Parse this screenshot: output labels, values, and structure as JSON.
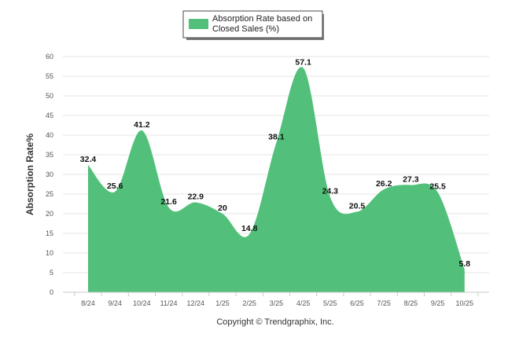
{
  "chart_data": {
    "type": "area",
    "legend": [
      "Absorption Rate based on",
      "Closed Sales (%)"
    ],
    "legend_position": "top-center",
    "ylabel": "Absorption Rate%",
    "xlabel": "",
    "categories": [
      "8/24",
      "9/24",
      "10/24",
      "11/24",
      "12/24",
      "1/25",
      "2/25",
      "3/25",
      "4/25",
      "5/25",
      "6/25",
      "7/25",
      "8/25",
      "9/25",
      "10/25"
    ],
    "values": [
      32.4,
      25.6,
      41.2,
      21.6,
      22.9,
      20,
      14.8,
      38.1,
      57.1,
      24.3,
      20.5,
      26.2,
      27.3,
      25.5,
      5.8
    ],
    "value_labels": [
      "32.4",
      "25.6",
      "41.2",
      "21.6",
      "22.9",
      "20",
      "14.8",
      "38.1",
      "57.1",
      "24.3",
      "20.5",
      "26.2",
      "27.3",
      "25.5",
      "5.8"
    ],
    "ylim": [
      0,
      60
    ],
    "yticks": [
      0,
      5,
      10,
      15,
      20,
      25,
      30,
      35,
      40,
      45,
      50,
      55,
      60
    ],
    "grid": true,
    "fill_color": "#52c07a",
    "footer": "Copyright © Trendgraphix, Inc."
  }
}
